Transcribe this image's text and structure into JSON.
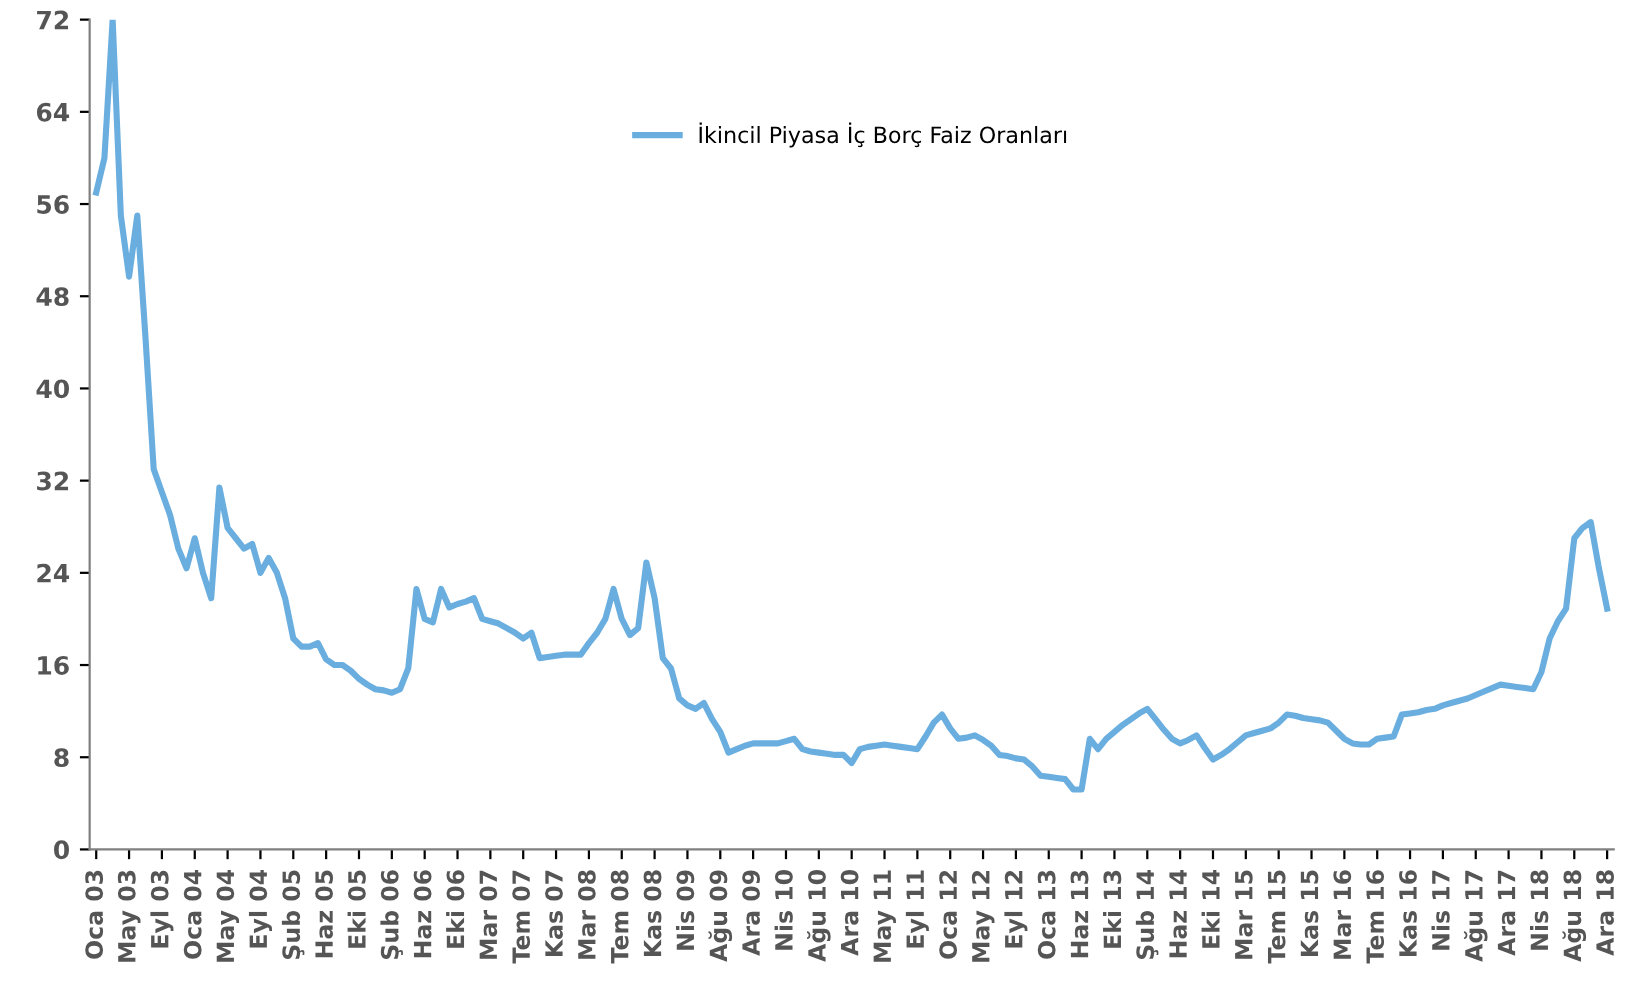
{
  "chart_data": {
    "type": "line",
    "categories": [
      "Oca 03",
      null,
      null,
      null,
      "May 03",
      null,
      null,
      null,
      "Eyl 03",
      null,
      null,
      null,
      "Oca 04",
      null,
      null,
      null,
      "May 04",
      null,
      null,
      null,
      "Eyl 04",
      null,
      null,
      null,
      "Şub 05",
      null,
      null,
      null,
      "Haz 05",
      null,
      null,
      null,
      "Eki 05",
      null,
      null,
      null,
      "Şub 06",
      null,
      null,
      null,
      "Haz 06",
      null,
      null,
      null,
      "Eki 06",
      null,
      null,
      null,
      "Mar 07",
      null,
      null,
      null,
      "Tem 07",
      null,
      null,
      null,
      "Kas 07",
      null,
      null,
      null,
      "Mar 08",
      null,
      null,
      null,
      "Tem 08",
      null,
      null,
      null,
      "Kas 08",
      null,
      null,
      null,
      "Nis 09",
      null,
      null,
      null,
      "Ağu 09",
      null,
      null,
      null,
      "Ara 09",
      null,
      null,
      null,
      "Nis 10",
      null,
      null,
      null,
      "Ağu 10",
      null,
      null,
      null,
      "Ara 10",
      null,
      null,
      null,
      "May 11",
      null,
      null,
      null,
      "Eyl 11",
      null,
      null,
      null,
      "Oca 12",
      null,
      null,
      null,
      "May 12",
      null,
      null,
      null,
      "Eyl 12",
      null,
      null,
      null,
      "Oca 13",
      null,
      null,
      null,
      "Haz 13",
      null,
      null,
      null,
      "Eki 13",
      null,
      null,
      null,
      "Şub 14",
      null,
      null,
      null,
      "Haz 14",
      null,
      null,
      null,
      "Eki 14",
      null,
      null,
      null,
      "Mar 15",
      null,
      null,
      null,
      "Tem 15",
      null,
      null,
      null,
      "Kas 15",
      null,
      null,
      null,
      "Mar 16",
      null,
      null,
      null,
      "Tem 16",
      null,
      null,
      null,
      "Kas 16",
      null,
      null,
      null,
      "Nis 17",
      null,
      null,
      null,
      "Ağu 17",
      null,
      null,
      null,
      "Ara 17",
      null,
      null,
      null,
      "Nis 18",
      null,
      null,
      null,
      "Ağu 18",
      null,
      null,
      null,
      "Ara 18"
    ],
    "ylim": [
      0,
      72
    ],
    "yticks": [
      0,
      8,
      16,
      24,
      32,
      40,
      48,
      56,
      64,
      72
    ],
    "grid": false,
    "legend": "top",
    "series": [
      {
        "name": "İkincil Piyasa İç Borç Faiz Oranları",
        "color": "#6aaee0",
        "values": [
          57,
          60,
          72,
          55,
          49.7,
          55,
          44.4,
          33,
          31,
          29,
          26.1,
          24.4,
          27,
          24,
          21.8,
          31.4,
          27.9,
          27,
          26.1,
          26.5,
          24,
          25.3,
          24,
          21.8,
          18.3,
          17.6,
          17.6,
          17.9,
          16.5,
          16,
          16,
          15.5,
          14.8,
          14.3,
          13.9,
          13.8,
          13.6,
          13.9,
          15.7,
          22.6,
          20,
          19.7,
          22.6,
          21,
          21.3,
          21.5,
          21.8,
          20,
          19.8,
          19.6,
          19.2,
          18.8,
          18.3,
          18.8,
          16.6,
          16.7,
          16.8,
          16.9,
          16.9,
          16.9,
          17.9,
          18.8,
          20,
          22.6,
          20,
          18.6,
          19.2,
          24.9,
          21.8,
          16.6,
          15.7,
          13.1,
          12.5,
          12.2,
          12.7,
          11.3,
          10.2,
          8.4,
          8.7,
          9.0,
          9.2,
          9.2,
          9.2,
          9.2,
          9.4,
          9.6,
          8.7,
          8.5,
          8.4,
          8.3,
          8.2,
          8.2,
          7.5,
          8.7,
          8.9,
          9.0,
          9.1,
          9.0,
          8.9,
          8.8,
          8.7,
          9.8,
          11,
          11.7,
          10.5,
          9.6,
          9.7,
          9.9,
          9.5,
          9.0,
          8.2,
          8.1,
          7.9,
          7.8,
          7.2,
          6.4,
          6.3,
          6.2,
          6.1,
          5.2,
          5.2,
          9.6,
          8.7,
          9.6,
          10.2,
          10.8,
          11.3,
          11.8,
          12.2,
          11.3,
          10.4,
          9.6,
          9.2,
          9.5,
          9.9,
          8.8,
          7.8,
          8.2,
          8.7,
          9.3,
          9.9,
          10.1,
          10.3,
          10.5,
          11.0,
          11.7,
          11.6,
          11.4,
          11.3,
          11.2,
          11.0,
          10.3,
          9.6,
          9.2,
          9.1,
          9.1,
          9.6,
          9.7,
          9.8,
          11.7,
          11.8,
          11.9,
          12.1,
          12.2,
          12.5,
          12.7,
          12.9,
          13.1,
          13.4,
          13.7,
          14.0,
          14.3,
          14.2,
          14.1,
          14.0,
          13.9,
          15.4,
          18.3,
          19.8,
          20.9,
          27,
          27.9,
          28.4,
          24.4,
          20.9
        ]
      }
    ]
  }
}
